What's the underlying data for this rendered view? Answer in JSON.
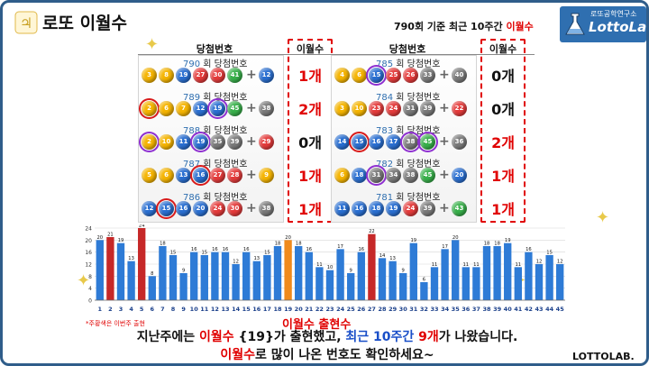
{
  "header": {
    "title": "로또 이월수",
    "base_note_prefix": "790회 기준 최근 10주간 ",
    "base_note_highlight": "이월수",
    "badge_small": "로또공학연구소",
    "badge_big": "LottoLab."
  },
  "columns": {
    "left_draw_header": "당첨번호",
    "left_count_header": "이월수",
    "right_draw_header": "당첨번호",
    "right_count_header": "이월수"
  },
  "draw_suffix": "회 당첨번호",
  "left_draws": [
    {
      "round": "790",
      "numbers": [
        3,
        8,
        19,
        27,
        30,
        41
      ],
      "bonus": 12,
      "marks": [],
      "count": "1개",
      "count_color": "#e00000"
    },
    {
      "round": "789",
      "numbers": [
        2,
        6,
        7,
        12,
        19,
        45
      ],
      "bonus": 38,
      "marks": [
        {
          "i": 0,
          "type": "red"
        },
        {
          "i": 4,
          "type": "purple"
        }
      ],
      "count": "2개",
      "count_color": "#e00000"
    },
    {
      "round": "788",
      "numbers": [
        2,
        10,
        11,
        19,
        35,
        39
      ],
      "bonus": 29,
      "marks": [
        {
          "i": 0,
          "type": "purple"
        },
        {
          "i": 3,
          "type": "purple"
        }
      ],
      "count": "0개",
      "count_color": "#111111"
    },
    {
      "round": "787",
      "numbers": [
        5,
        6,
        13,
        16,
        27,
        28
      ],
      "bonus": 9,
      "marks": [
        {
          "i": 3,
          "type": "red"
        }
      ],
      "count": "1개",
      "count_color": "#e00000"
    },
    {
      "round": "786",
      "numbers": [
        12,
        15,
        16,
        20,
        24,
        30
      ],
      "bonus": 38,
      "marks": [
        {
          "i": 1,
          "type": "red"
        }
      ],
      "count": "1개",
      "count_color": "#e00000"
    }
  ],
  "right_draws": [
    {
      "round": "785",
      "numbers": [
        4,
        6,
        15,
        25,
        26,
        33
      ],
      "bonus": 40,
      "marks": [
        {
          "i": 2,
          "type": "purple"
        }
      ],
      "count": "0개",
      "count_color": "#111111"
    },
    {
      "round": "784",
      "numbers": [
        3,
        10,
        23,
        24,
        31,
        39
      ],
      "bonus": 22,
      "marks": [],
      "count": "0개",
      "count_color": "#111111"
    },
    {
      "round": "783",
      "numbers": [
        14,
        15,
        16,
        17,
        38,
        45
      ],
      "bonus": 36,
      "marks": [
        {
          "i": 1,
          "type": "red"
        },
        {
          "i": 4,
          "type": "purple"
        },
        {
          "i": 5,
          "type": "purple"
        }
      ],
      "count": "2개",
      "count_color": "#e00000"
    },
    {
      "round": "782",
      "numbers": [
        6,
        18,
        31,
        34,
        38,
        45
      ],
      "bonus": 20,
      "marks": [
        {
          "i": 2,
          "type": "purple"
        }
      ],
      "count": "1개",
      "count_color": "#e00000"
    },
    {
      "round": "781",
      "numbers": [
        11,
        16,
        18,
        19,
        24,
        39
      ],
      "bonus": 43,
      "marks": [],
      "count": "1개",
      "count_color": "#e00000"
    }
  ],
  "chart_data": {
    "type": "bar",
    "categories": [
      "1",
      "2",
      "3",
      "4",
      "5",
      "6",
      "7",
      "8",
      "9",
      "10",
      "11",
      "12",
      "13",
      "14",
      "15",
      "16",
      "17",
      "18",
      "19",
      "20",
      "21",
      "22",
      "23",
      "24",
      "25",
      "26",
      "27",
      "28",
      "29",
      "30",
      "31",
      "32",
      "33",
      "34",
      "35",
      "36",
      "37",
      "38",
      "39",
      "40",
      "41",
      "42",
      "43",
      "44",
      "45"
    ],
    "values": [
      20,
      21,
      19,
      13,
      24,
      8,
      18,
      15,
      9,
      16,
      15,
      16,
      16,
      12,
      16,
      13,
      15,
      18,
      20,
      18,
      16,
      11,
      10,
      17,
      9,
      16,
      22,
      14,
      13,
      9,
      19,
      6,
      11,
      17,
      20,
      11,
      11,
      18,
      18,
      19,
      11,
      16,
      12,
      15,
      12
    ],
    "highlight": {
      "2": "#c62828",
      "5": "#c62828",
      "19": "#f08a1c",
      "27": "#c62828"
    },
    "bar_color": "#2e7bd6",
    "ylim": [
      0,
      24
    ],
    "yticks": [
      0,
      4,
      8,
      12,
      16,
      20,
      24
    ],
    "grid": true
  },
  "footnote": "*주황색은 이번주 출현",
  "legend_title": "이월수 출현수",
  "summary": {
    "line1_a": "지난주에는 ",
    "line1_b": "이월수",
    "line1_c": " {19}가 출현했고, ",
    "line1_d": "최근 10주간",
    "line1_e": " ",
    "line1_f": "9개",
    "line1_g": "가 나왔습니다.",
    "line2_a": "이월수",
    "line2_b": "로 많이 나온 번호도 확인하세요~"
  },
  "brand_footer": "LOTTOLAB.",
  "ball_colors": {
    "1-10": "#f5b400",
    "11-20": "#2a6fd1",
    "21-30": "#e43b3b",
    "31-40": "#7a7a7a",
    "41-45": "#38b04a"
  }
}
